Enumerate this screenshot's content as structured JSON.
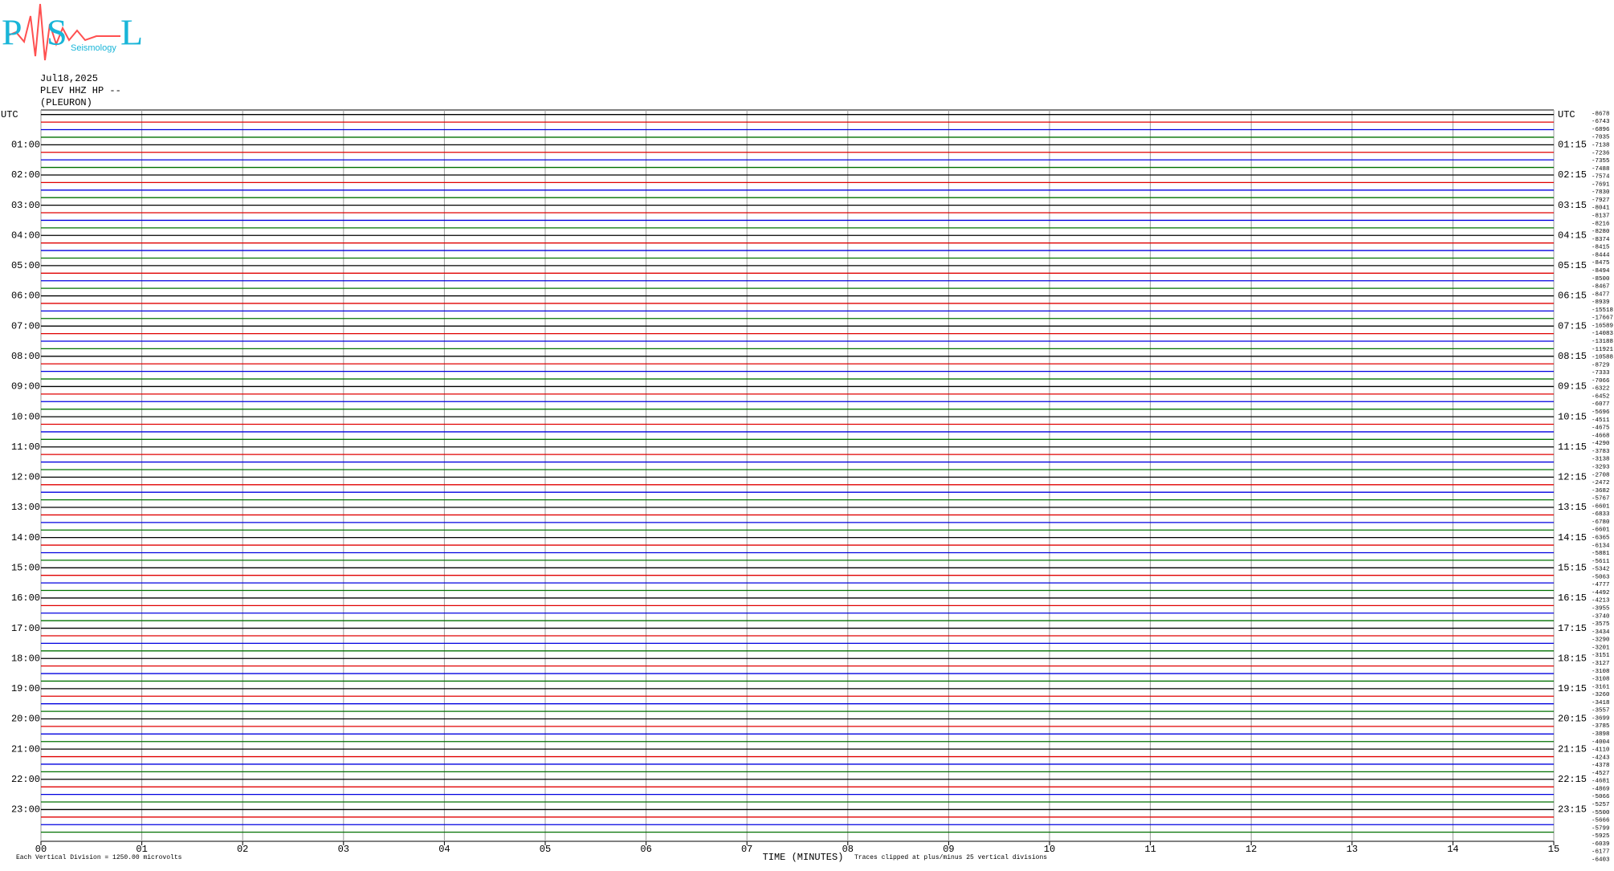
{
  "chart_data": {
    "type": "helicorder",
    "logo_letters": [
      "P",
      "S",
      "L"
    ],
    "logo_word": "Seismology",
    "date": "Jul18,2025",
    "station": "PLEV HHZ HP --",
    "site": "(PLEURON)",
    "left_labels": [
      "UTC",
      "01:00",
      "02:00",
      "03:00",
      "04:00",
      "05:00",
      "06:00",
      "07:00",
      "08:00",
      "09:00",
      "10:00",
      "11:00",
      "12:00",
      "13:00",
      "14:00",
      "15:00",
      "16:00",
      "17:00",
      "18:00",
      "19:00",
      "20:00",
      "21:00",
      "22:00",
      "23:00"
    ],
    "right_labels": [
      "UTC",
      "01:15",
      "02:15",
      "03:15",
      "04:15",
      "05:15",
      "06:15",
      "07:15",
      "08:15",
      "09:15",
      "10:15",
      "11:15",
      "12:15",
      "13:15",
      "14:15",
      "15:15",
      "16:15",
      "17:15",
      "18:15",
      "19:15",
      "20:15",
      "21:15",
      "22:15",
      "23:15"
    ],
    "trace_colors": [
      "#000000",
      "#e00000",
      "#0000e0",
      "#007000"
    ],
    "offsets": [
      -8678,
      -6743,
      -6896,
      -7035,
      -7138,
      -7236,
      -7355,
      -7488,
      -7574,
      -7691,
      -7830,
      -7927,
      -8041,
      -8137,
      -8216,
      -8280,
      -8374,
      -8415,
      -8444,
      -8475,
      -8494,
      -8500,
      -8467,
      -8477,
      -8939,
      -15518,
      -17667,
      -16589,
      -14083,
      -13188,
      -11921,
      -10588,
      -8729,
      -7333,
      -7066,
      -6322,
      -6452,
      -6077,
      -5696,
      -4511,
      -4675,
      -4668,
      -4290,
      -3783,
      -3138,
      -3293,
      -2708,
      -2472,
      -3682,
      -5767,
      -6601,
      -6833,
      -6780,
      -6601,
      -6365,
      -6134,
      -5881,
      -5611,
      -5342,
      -5063,
      -4777,
      -4492,
      -4213,
      -3955,
      -3740,
      -3575,
      -3434,
      -3290,
      -3201,
      -3151,
      -3127,
      -3108,
      -3108,
      -3161,
      -3260,
      -3418,
      -3557,
      -3699,
      -3785,
      -3898,
      -4004,
      -4110,
      -4243,
      -4378,
      -4527,
      -4681,
      -4869,
      -5066,
      -5257,
      -5500,
      -5666,
      -5799,
      -5925,
      -6039,
      -6177,
      -6403
    ],
    "xlim": [
      0,
      15
    ],
    "xticks": [
      {
        "value": 0,
        "label": "00"
      },
      {
        "value": 1,
        "label": "01"
      },
      {
        "value": 2,
        "label": "02"
      },
      {
        "value": 3,
        "label": "03"
      },
      {
        "value": 4,
        "label": "04"
      },
      {
        "value": 5,
        "label": "05"
      },
      {
        "value": 6,
        "label": "06"
      },
      {
        "value": 7,
        "label": "07"
      },
      {
        "value": 8,
        "label": "08"
      },
      {
        "value": 9,
        "label": "09"
      },
      10,
      11,
      12,
      13,
      14,
      15
    ],
    "xlabel": "TIME (MINUTES)",
    "note_left": "Each Vertical Division = 1250.00 microvolts",
    "note_right": "Traces clipped at plus/minus 25 vertical divisions",
    "grid_color": "#999999"
  }
}
